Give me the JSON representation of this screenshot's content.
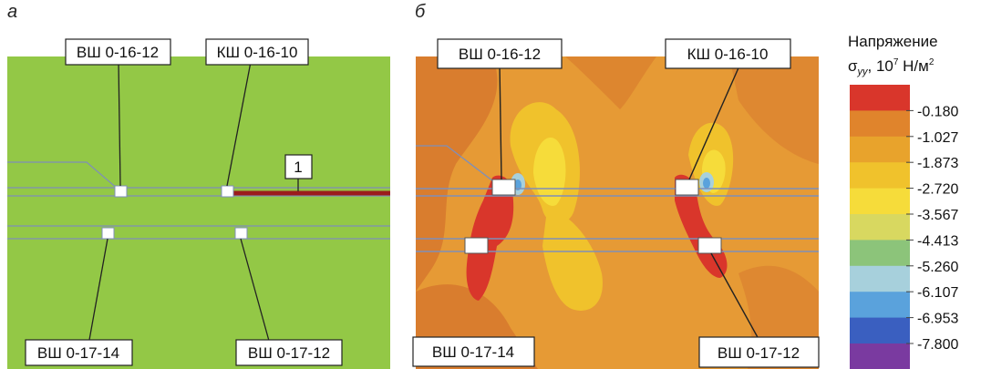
{
  "panels": {
    "a": {
      "letter": "а",
      "labels": {
        "top_left": "ВШ 0-16-12",
        "top_right": "КШ 0-16-10",
        "bottom_left": "ВШ 0-17-14",
        "bottom_right": "ВШ 0-17-12",
        "marker": "1"
      }
    },
    "b": {
      "letter": "б",
      "labels": {
        "top_left": "ВШ 0-16-12",
        "top_right": "КШ 0-16-10",
        "bottom_left": "ВШ 0-17-14",
        "bottom_right": "ВШ 0-17-12"
      }
    }
  },
  "legend": {
    "title_line1": "Напряжение",
    "symbol": "σ",
    "symbol_sub": "yy",
    "unit_prefix": ", 10",
    "unit_exp": "7",
    "unit_suffix": " Н/м",
    "unit_exp2": "2",
    "ticks": [
      "-0.180",
      "-1.027",
      "-1.873",
      "-2.720",
      "-3.567",
      "-4.413",
      "-5.260",
      "-6.107",
      "-6.953",
      "-7.800"
    ],
    "colors": [
      "#d9362b",
      "#e0842c",
      "#e8a32c",
      "#f0c22c",
      "#f6dc3a",
      "#d8d860",
      "#8cc47a",
      "#a7d0dc",
      "#5aa2dc",
      "#3a5fc0",
      "#7a3aa0"
    ]
  },
  "colors": {
    "panel_a_bg": "#8ec63f",
    "red_zone": "#d9362b",
    "orange_bg": "#e69a35",
    "dark_orange": "#d97d2e",
    "yellow": "#f3d53a",
    "line_blue": "#7f8fb8",
    "marker_red": "#9b1c1c"
  }
}
